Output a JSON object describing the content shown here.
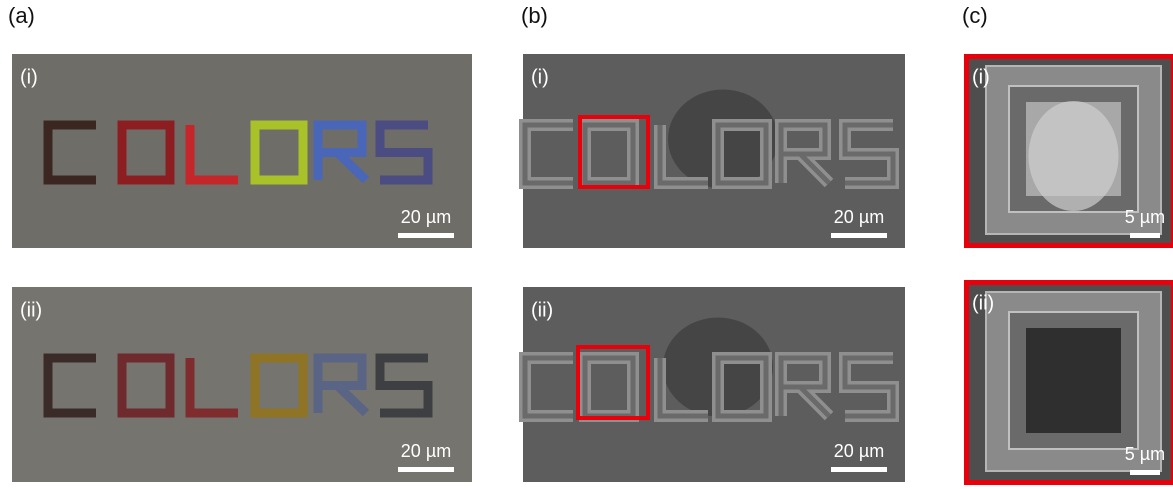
{
  "panels": [
    {
      "label": "(a)",
      "images": [
        {
          "label": "(i)",
          "scale_bar": "20 µm"
        },
        {
          "label": "(ii)",
          "scale_bar": "20 µm"
        }
      ]
    },
    {
      "label": "(b)",
      "images": [
        {
          "label": "(i)",
          "scale_bar": "20 µm"
        },
        {
          "label": "(ii)",
          "scale_bar": "20 µm"
        }
      ]
    },
    {
      "label": "(c)",
      "images": [
        {
          "label": "(i)",
          "scale_bar": "5 µm"
        },
        {
          "label": "(ii)",
          "scale_bar": "5 µm"
        }
      ]
    }
  ]
}
